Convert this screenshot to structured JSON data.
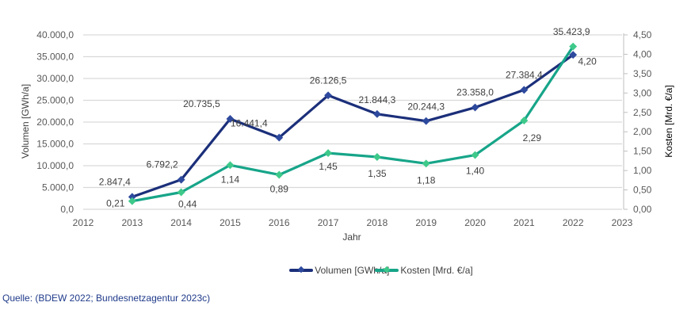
{
  "chart_data": {
    "type": "line",
    "title": "",
    "xlabel": "Jahr",
    "ylabel": "Volumen [GWh/a]",
    "y2label": "Kosten [Mrd. €/a]",
    "x": [
      2013,
      2014,
      2015,
      2016,
      2017,
      2018,
      2019,
      2020,
      2021,
      2022
    ],
    "xlim": [
      2012,
      2023
    ],
    "x_ticks": [
      "2012",
      "2013",
      "2014",
      "2015",
      "2016",
      "2017",
      "2018",
      "2019",
      "2020",
      "2021",
      "2022",
      "2023"
    ],
    "ylim": [
      0,
      40000
    ],
    "y_ticks": [
      "0,0",
      "5.000,0",
      "10.000,0",
      "15.000,0",
      "20.000,0",
      "25.000,0",
      "30.000,0",
      "35.000,0",
      "40.000,0"
    ],
    "y2lim": [
      0,
      4.5
    ],
    "y2_ticks": [
      "0,00",
      "0,50",
      "1,00",
      "1,50",
      "2,00",
      "2,50",
      "3,00",
      "3,50",
      "4,00",
      "4,50"
    ],
    "grid": true,
    "legend_position": "bottom",
    "series": [
      {
        "name": "Volumen [GWh/a]",
        "axis": "left",
        "color": "#1b2f7a",
        "marker_color": "#2e4a9e",
        "values": [
          2847.4,
          6792.2,
          20735.5,
          16441.4,
          26126.5,
          21844.3,
          20244.3,
          23358.0,
          27384.4,
          35423.9
        ],
        "labels": [
          "2.847,4",
          "6.792,2",
          "20.735,5",
          "16.441,4",
          "26.126,5",
          "21.844,3",
          "20.244,3",
          "23.358,0",
          "27.384,4",
          "35.423,9"
        ]
      },
      {
        "name": "Kosten [Mrd. €/a]",
        "axis": "right",
        "color": "#17a589",
        "marker_color": "#3ec98a",
        "values": [
          0.21,
          0.44,
          1.14,
          0.89,
          1.45,
          1.35,
          1.18,
          1.4,
          2.29,
          4.2
        ],
        "labels": [
          "0,21",
          "0,44",
          "1,14",
          "0,89",
          "1,45",
          "1,35",
          "1,18",
          "1,40",
          "2,29",
          "4,20"
        ]
      }
    ]
  },
  "source": "Quelle: (BDEW 2022; Bundesnetzagentur 2023c)"
}
